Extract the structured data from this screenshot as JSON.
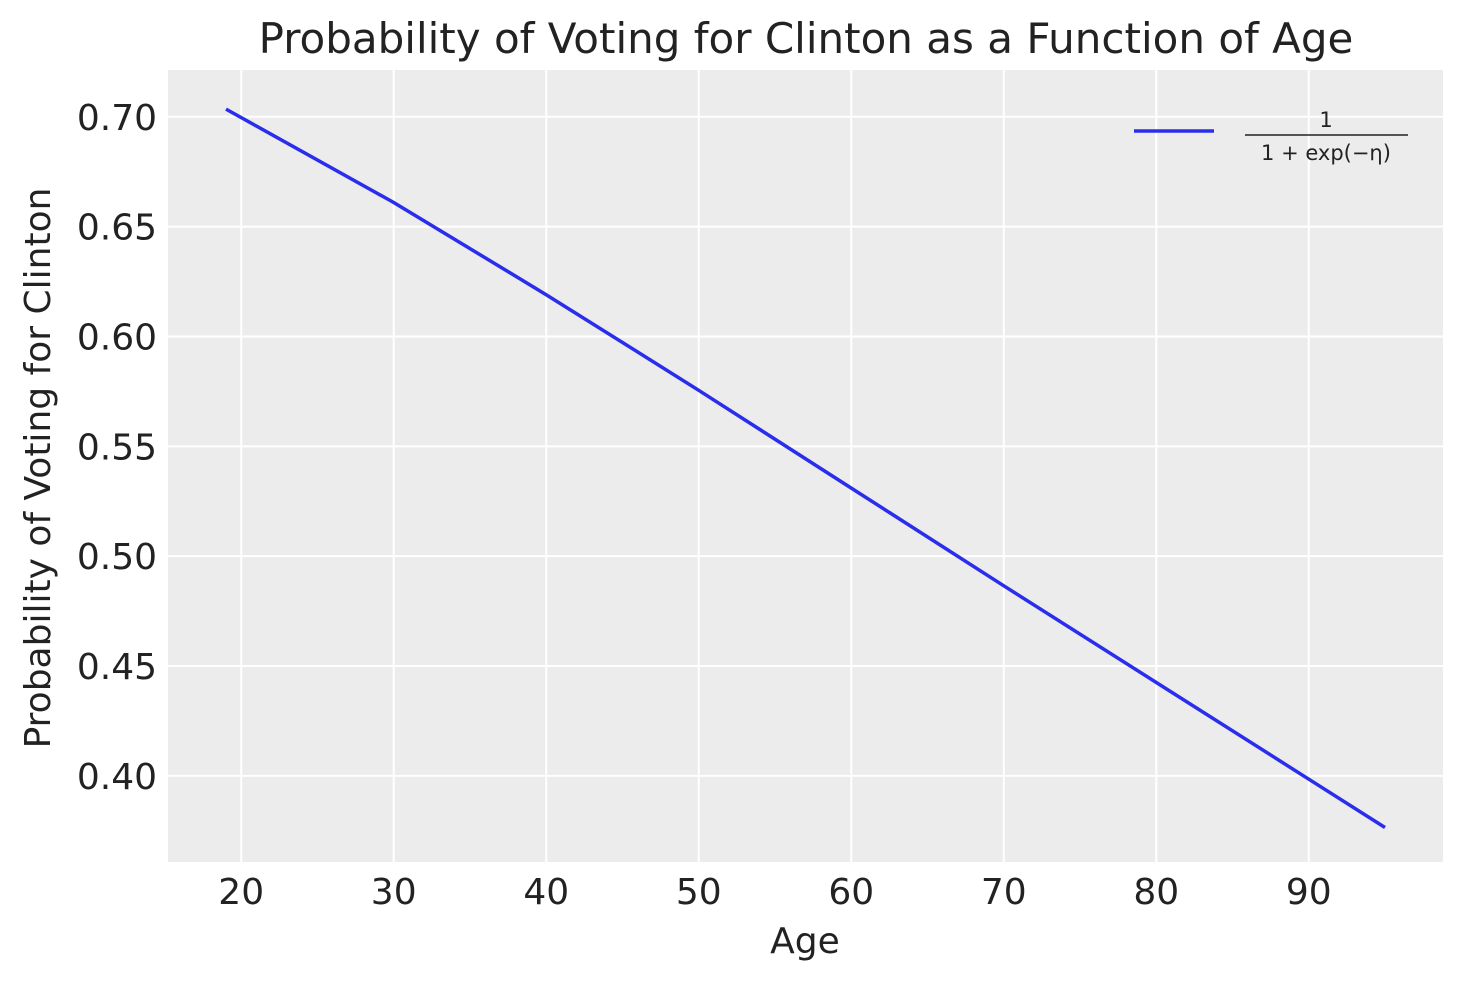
{
  "chart_data": {
    "type": "line",
    "title": "Probability of Voting for Clinton as a Function of Age",
    "xlabel": "Age",
    "ylabel": "Probability of Voting for Clinton",
    "xlim": [
      15.2,
      98.8
    ],
    "ylim": [
      0.3608,
      0.7213
    ],
    "xticks": [
      20,
      30,
      40,
      50,
      60,
      70,
      80,
      90
    ],
    "yticks": [
      0.4,
      0.45,
      0.5,
      0.55,
      0.6,
      0.65,
      0.7
    ],
    "xtick_labels": [
      "20",
      "30",
      "40",
      "50",
      "60",
      "70",
      "80",
      "90"
    ],
    "ytick_labels": [
      "0.40",
      "0.45",
      "0.50",
      "0.55",
      "0.60",
      "0.65",
      "0.70"
    ],
    "grid": true,
    "legend_position": "top-right",
    "series": [
      {
        "name": "1 / (1 + exp(−η))",
        "legend_numerator": "1",
        "legend_denominator": "1 + exp(−η)",
        "color": "#2a2eec",
        "x": [
          19,
          30,
          40,
          50,
          60,
          70,
          80,
          90,
          95
        ],
        "y": [
          0.7035,
          0.661,
          0.619,
          0.5755,
          0.531,
          0.4865,
          0.4425,
          0.3985,
          0.3765
        ]
      }
    ],
    "colors": {
      "plot_background": "#ececec",
      "grid": "#ffffff",
      "text": "#222222"
    }
  }
}
